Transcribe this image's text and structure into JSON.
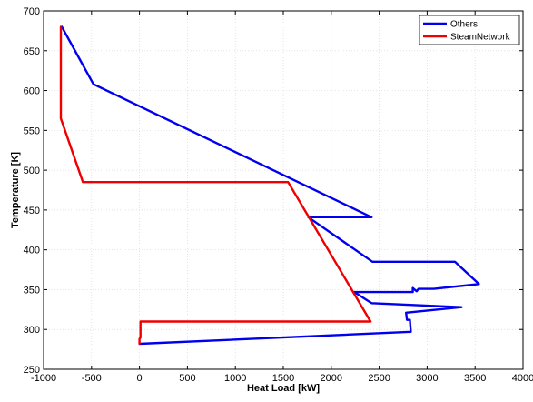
{
  "chart_data": {
    "type": "line",
    "title": "",
    "xlabel": "Heat Load [kW]",
    "ylabel": "Temperature [K]",
    "xlim": [
      -1000,
      4000
    ],
    "ylim": [
      250,
      700
    ],
    "xticks": [
      -1000,
      -500,
      0,
      500,
      1000,
      1500,
      2000,
      2500,
      3000,
      3500,
      4000
    ],
    "yticks": [
      250,
      300,
      350,
      400,
      450,
      500,
      550,
      600,
      650,
      700
    ],
    "xtick_labels": [
      "-1000",
      "-500",
      "0",
      "500",
      "1000",
      "1500",
      "2000",
      "2500",
      "3000",
      "3500",
      "4000"
    ],
    "ytick_labels": [
      "250",
      "300",
      "350",
      "400",
      "450",
      "500",
      "550",
      "600",
      "650",
      "700"
    ],
    "grid": true,
    "legend_position": "top-right",
    "series": [
      {
        "name": "Others",
        "color": "#0000ee",
        "x": [
          -810,
          -480,
          2420,
          1760,
          2430,
          3290,
          3540,
          3070,
          2910,
          2890,
          2850,
          2850,
          2240,
          2420,
          3360,
          2780,
          2790,
          2820,
          2830,
          0
        ],
        "y": [
          680,
          608,
          441,
          441,
          385,
          385,
          357,
          351,
          351,
          348,
          352,
          347,
          347,
          333,
          328,
          321,
          312,
          312,
          297,
          282
        ]
      },
      {
        "name": "SteamNetwork",
        "color": "#ee0000",
        "x": [
          -820,
          -820,
          -590,
          1550,
          2410,
          10,
          10,
          0,
          0
        ],
        "y": [
          680,
          565,
          485,
          485,
          310,
          310,
          290,
          288,
          282
        ]
      }
    ]
  }
}
